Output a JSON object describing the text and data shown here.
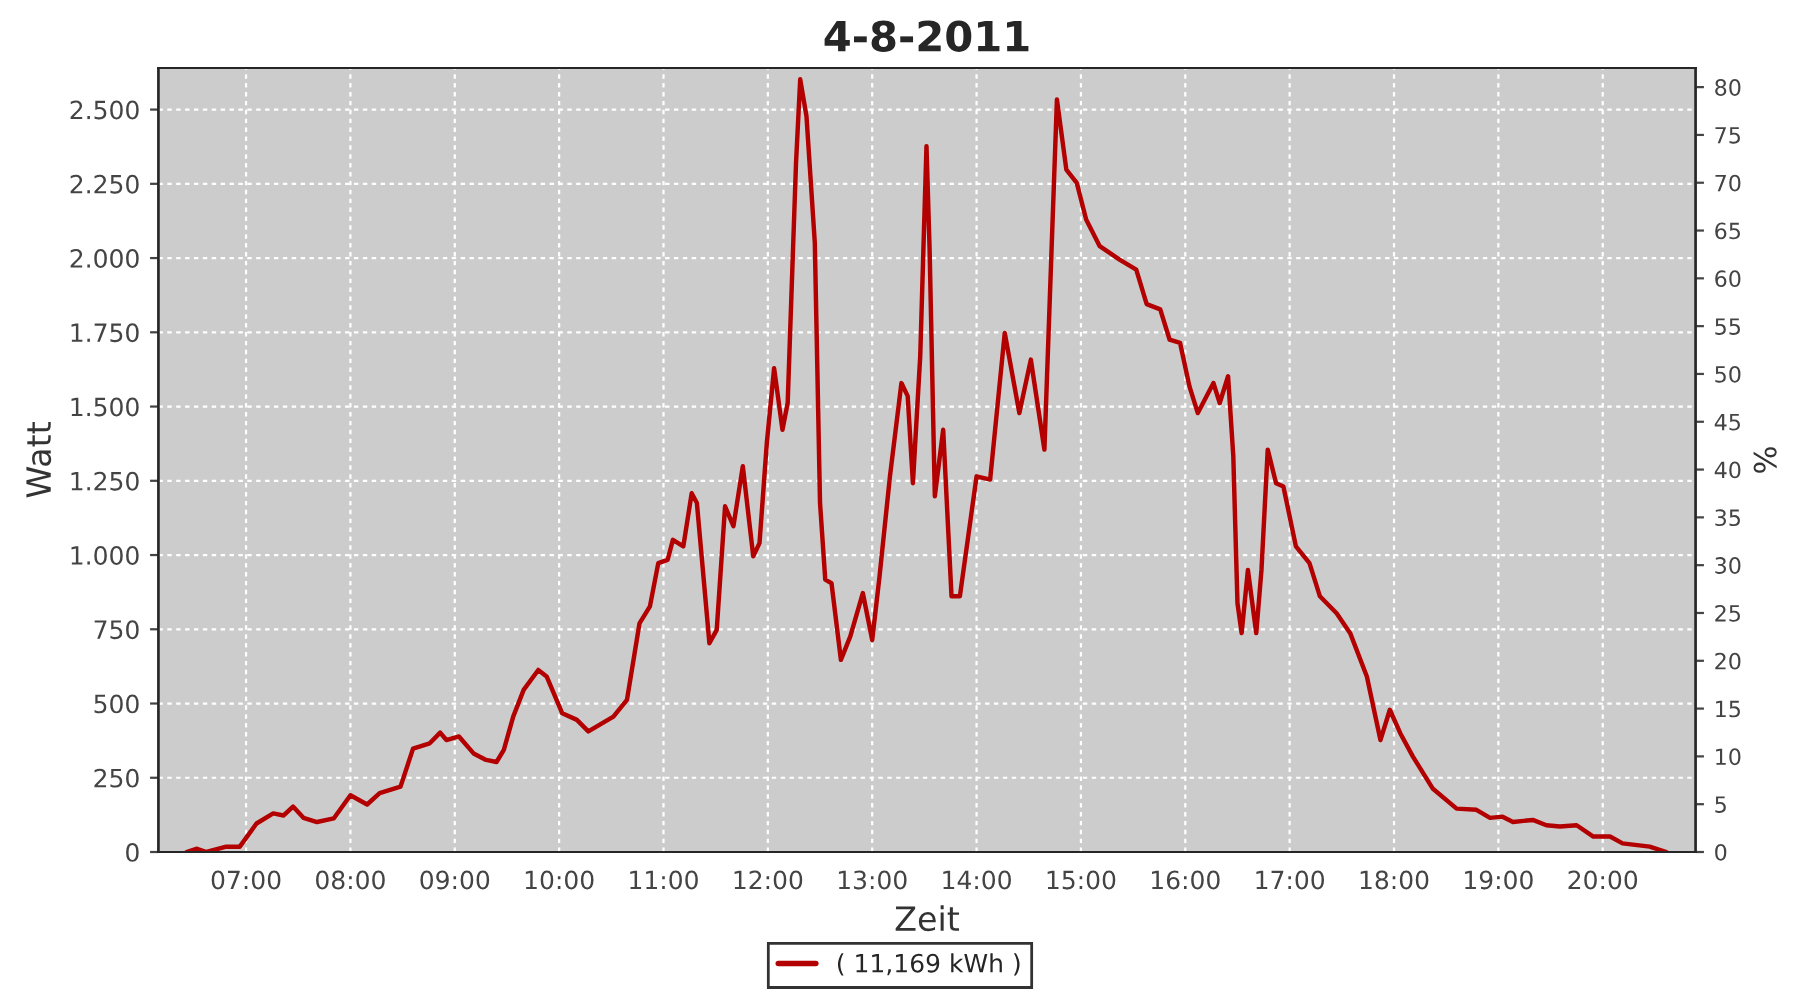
{
  "chart_data": {
    "type": "line",
    "title": "4-8-2011",
    "xlabel": "Zeit",
    "ylabel": "Watt",
    "y2label": "%",
    "x": [
      6.43,
      6.53,
      6.62,
      6.81,
      6.94,
      7.1,
      7.26,
      7.36,
      7.45,
      7.55,
      7.68,
      7.84,
      8.0,
      8.16,
      8.28,
      8.48,
      8.6,
      8.76,
      8.86,
      8.92,
      9.04,
      9.18,
      9.3,
      9.4,
      9.47,
      9.56,
      9.66,
      9.8,
      9.88,
      10.03,
      10.17,
      10.28,
      10.39,
      10.52,
      10.65,
      10.77,
      10.87,
      10.95,
      11.04,
      11.09,
      11.19,
      11.27,
      11.32,
      11.44,
      11.51,
      11.59,
      11.67,
      11.76,
      11.86,
      11.92,
      11.99,
      12.06,
      12.14,
      12.19,
      12.27,
      12.31,
      12.37,
      12.45,
      12.5,
      12.55,
      12.61,
      12.7,
      12.79,
      12.91,
      13.0,
      13.07,
      13.17,
      13.28,
      13.34,
      13.39,
      13.46,
      13.52,
      13.55,
      13.6,
      13.68,
      13.76,
      13.84,
      14.0,
      14.13,
      14.27,
      14.41,
      14.52,
      14.65,
      14.77,
      14.86,
      14.96,
      15.05,
      15.18,
      15.37,
      15.53,
      15.63,
      15.76,
      15.85,
      15.95,
      16.04,
      16.12,
      16.27,
      16.33,
      16.41,
      16.46,
      16.5,
      16.54,
      16.6,
      16.68,
      16.73,
      16.79,
      16.87,
      16.94,
      17.06,
      17.19,
      17.29,
      17.45,
      17.58,
      17.74,
      17.87,
      17.96,
      18.06,
      18.18,
      18.37,
      18.6,
      18.79,
      18.92,
      19.04,
      19.14,
      19.33,
      19.46,
      19.59,
      19.75,
      19.91,
      20.07,
      20.19,
      20.45,
      20.61
    ],
    "series": [
      {
        "name": "( 11,169 kWh )",
        "color": "#b30000",
        "values": [
          0,
          11,
          0,
          18,
          18,
          96,
          130,
          123,
          153,
          115,
          101,
          113,
          191,
          160,
          198,
          220,
          348,
          366,
          402,
          377,
          389,
          332,
          310,
          303,
          344,
          456,
          546,
          613,
          591,
          467,
          445,
          406,
          429,
          456,
          512,
          770,
          827,
          973,
          984,
          1051,
          1029,
          1208,
          1175,
          703,
          748,
          1164,
          1097,
          1299,
          996,
          1040,
          1377,
          1629,
          1422,
          1512,
          2321,
          2602,
          2478,
          2051,
          1175,
          917,
          905,
          647,
          726,
          872,
          714,
          928,
          1265,
          1579,
          1535,
          1242,
          1669,
          2377,
          2029,
          1198,
          1422,
          861,
          861,
          1265,
          1254,
          1748,
          1478,
          1658,
          1355,
          2534,
          2298,
          2253,
          2130,
          2040,
          1995,
          1961,
          1845,
          1827,
          1725,
          1714,
          1568,
          1478,
          1579,
          1512,
          1602,
          1333,
          838,
          737,
          950,
          737,
          950,
          1355,
          1242,
          1231,
          1029,
          973,
          861,
          804,
          737,
          591,
          377,
          479,
          400,
          322,
          214,
          146,
          142,
          115,
          119,
          101,
          108,
          90,
          86,
          90,
          52,
          52,
          29,
          18,
          0
        ]
      }
    ],
    "xlim": [
      6.16,
      20.89
    ],
    "xticks": [
      {
        "value": 7,
        "label": "07:00"
      },
      {
        "value": 8,
        "label": "08:00"
      },
      {
        "value": 9,
        "label": "09:00"
      },
      {
        "value": 10,
        "label": "10:00"
      },
      {
        "value": 11,
        "label": "11:00"
      },
      {
        "value": 12,
        "label": "12:00"
      },
      {
        "value": 13,
        "label": "13:00"
      },
      {
        "value": 14,
        "label": "14:00"
      },
      {
        "value": 15,
        "label": "15:00"
      },
      {
        "value": 16,
        "label": "16:00"
      },
      {
        "value": 17,
        "label": "17:00"
      },
      {
        "value": 18,
        "label": "18:00"
      },
      {
        "value": 19,
        "label": "19:00"
      },
      {
        "value": 20,
        "label": "20:00"
      }
    ],
    "ylim": [
      0,
      2640
    ],
    "yticks": [
      0,
      250,
      500,
      750,
      {
        "value": 1000,
        "label": "1.000"
      },
      {
        "value": 1250,
        "label": "1.250"
      },
      {
        "value": 1500,
        "label": "1.500"
      },
      {
        "value": 1750,
        "label": "1.750"
      },
      {
        "value": 2000,
        "label": "2.000"
      },
      {
        "value": 2250,
        "label": "2.250"
      },
      {
        "value": 2500,
        "label": "2.500"
      }
    ],
    "y2lim": [
      0,
      82
    ],
    "y2ticks": [
      0,
      5,
      10,
      15,
      20,
      25,
      30,
      35,
      40,
      45,
      50,
      55,
      60,
      65,
      70,
      75,
      80
    ],
    "grid": true,
    "legend": "bottom",
    "marker": "none",
    "line_style": "solid"
  }
}
